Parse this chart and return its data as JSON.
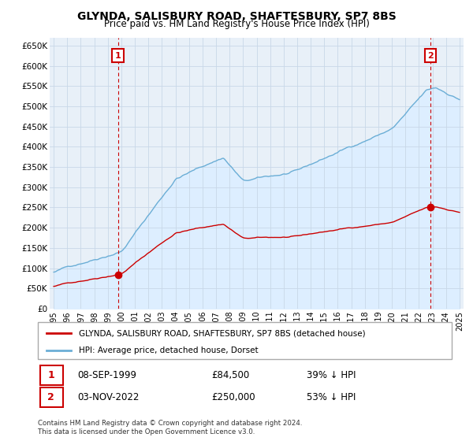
{
  "title": "GLYNDA, SALISBURY ROAD, SHAFTESBURY, SP7 8BS",
  "subtitle": "Price paid vs. HM Land Registry's House Price Index (HPI)",
  "legend_line1": "GLYNDA, SALISBURY ROAD, SHAFTESBURY, SP7 8BS (detached house)",
  "legend_line2": "HPI: Average price, detached house, Dorset",
  "annotation1": {
    "num": "1",
    "date": "08-SEP-1999",
    "price": "£84,500",
    "pct": "39% ↓ HPI"
  },
  "annotation2": {
    "num": "2",
    "date": "03-NOV-2022",
    "price": "£250,000",
    "pct": "53% ↓ HPI"
  },
  "footer": "Contains HM Land Registry data © Crown copyright and database right 2024.\nThis data is licensed under the Open Government Licence v3.0.",
  "sale_color": "#cc0000",
  "hpi_color": "#6baed6",
  "hpi_fill_color": "#ddeeff",
  "ylim": [
    0,
    670000
  ],
  "yticks": [
    0,
    50000,
    100000,
    150000,
    200000,
    250000,
    300000,
    350000,
    400000,
    450000,
    500000,
    550000,
    600000,
    650000
  ],
  "ytick_labels": [
    "£0",
    "£50K",
    "£100K",
    "£150K",
    "£200K",
    "£250K",
    "£300K",
    "£350K",
    "£400K",
    "£450K",
    "£500K",
    "£550K",
    "£600K",
    "£650K"
  ],
  "sale1_year": 1999.75,
  "sale2_year": 2022.84,
  "sale1_price": 84500,
  "sale2_price": 250000,
  "xlim": [
    1994.7,
    2025.3
  ],
  "xtick_years": [
    1995,
    1996,
    1997,
    1998,
    1999,
    2000,
    2001,
    2002,
    2003,
    2004,
    2005,
    2006,
    2007,
    2008,
    2009,
    2010,
    2011,
    2012,
    2013,
    2014,
    2015,
    2016,
    2017,
    2018,
    2019,
    2020,
    2021,
    2022,
    2023,
    2024,
    2025
  ]
}
